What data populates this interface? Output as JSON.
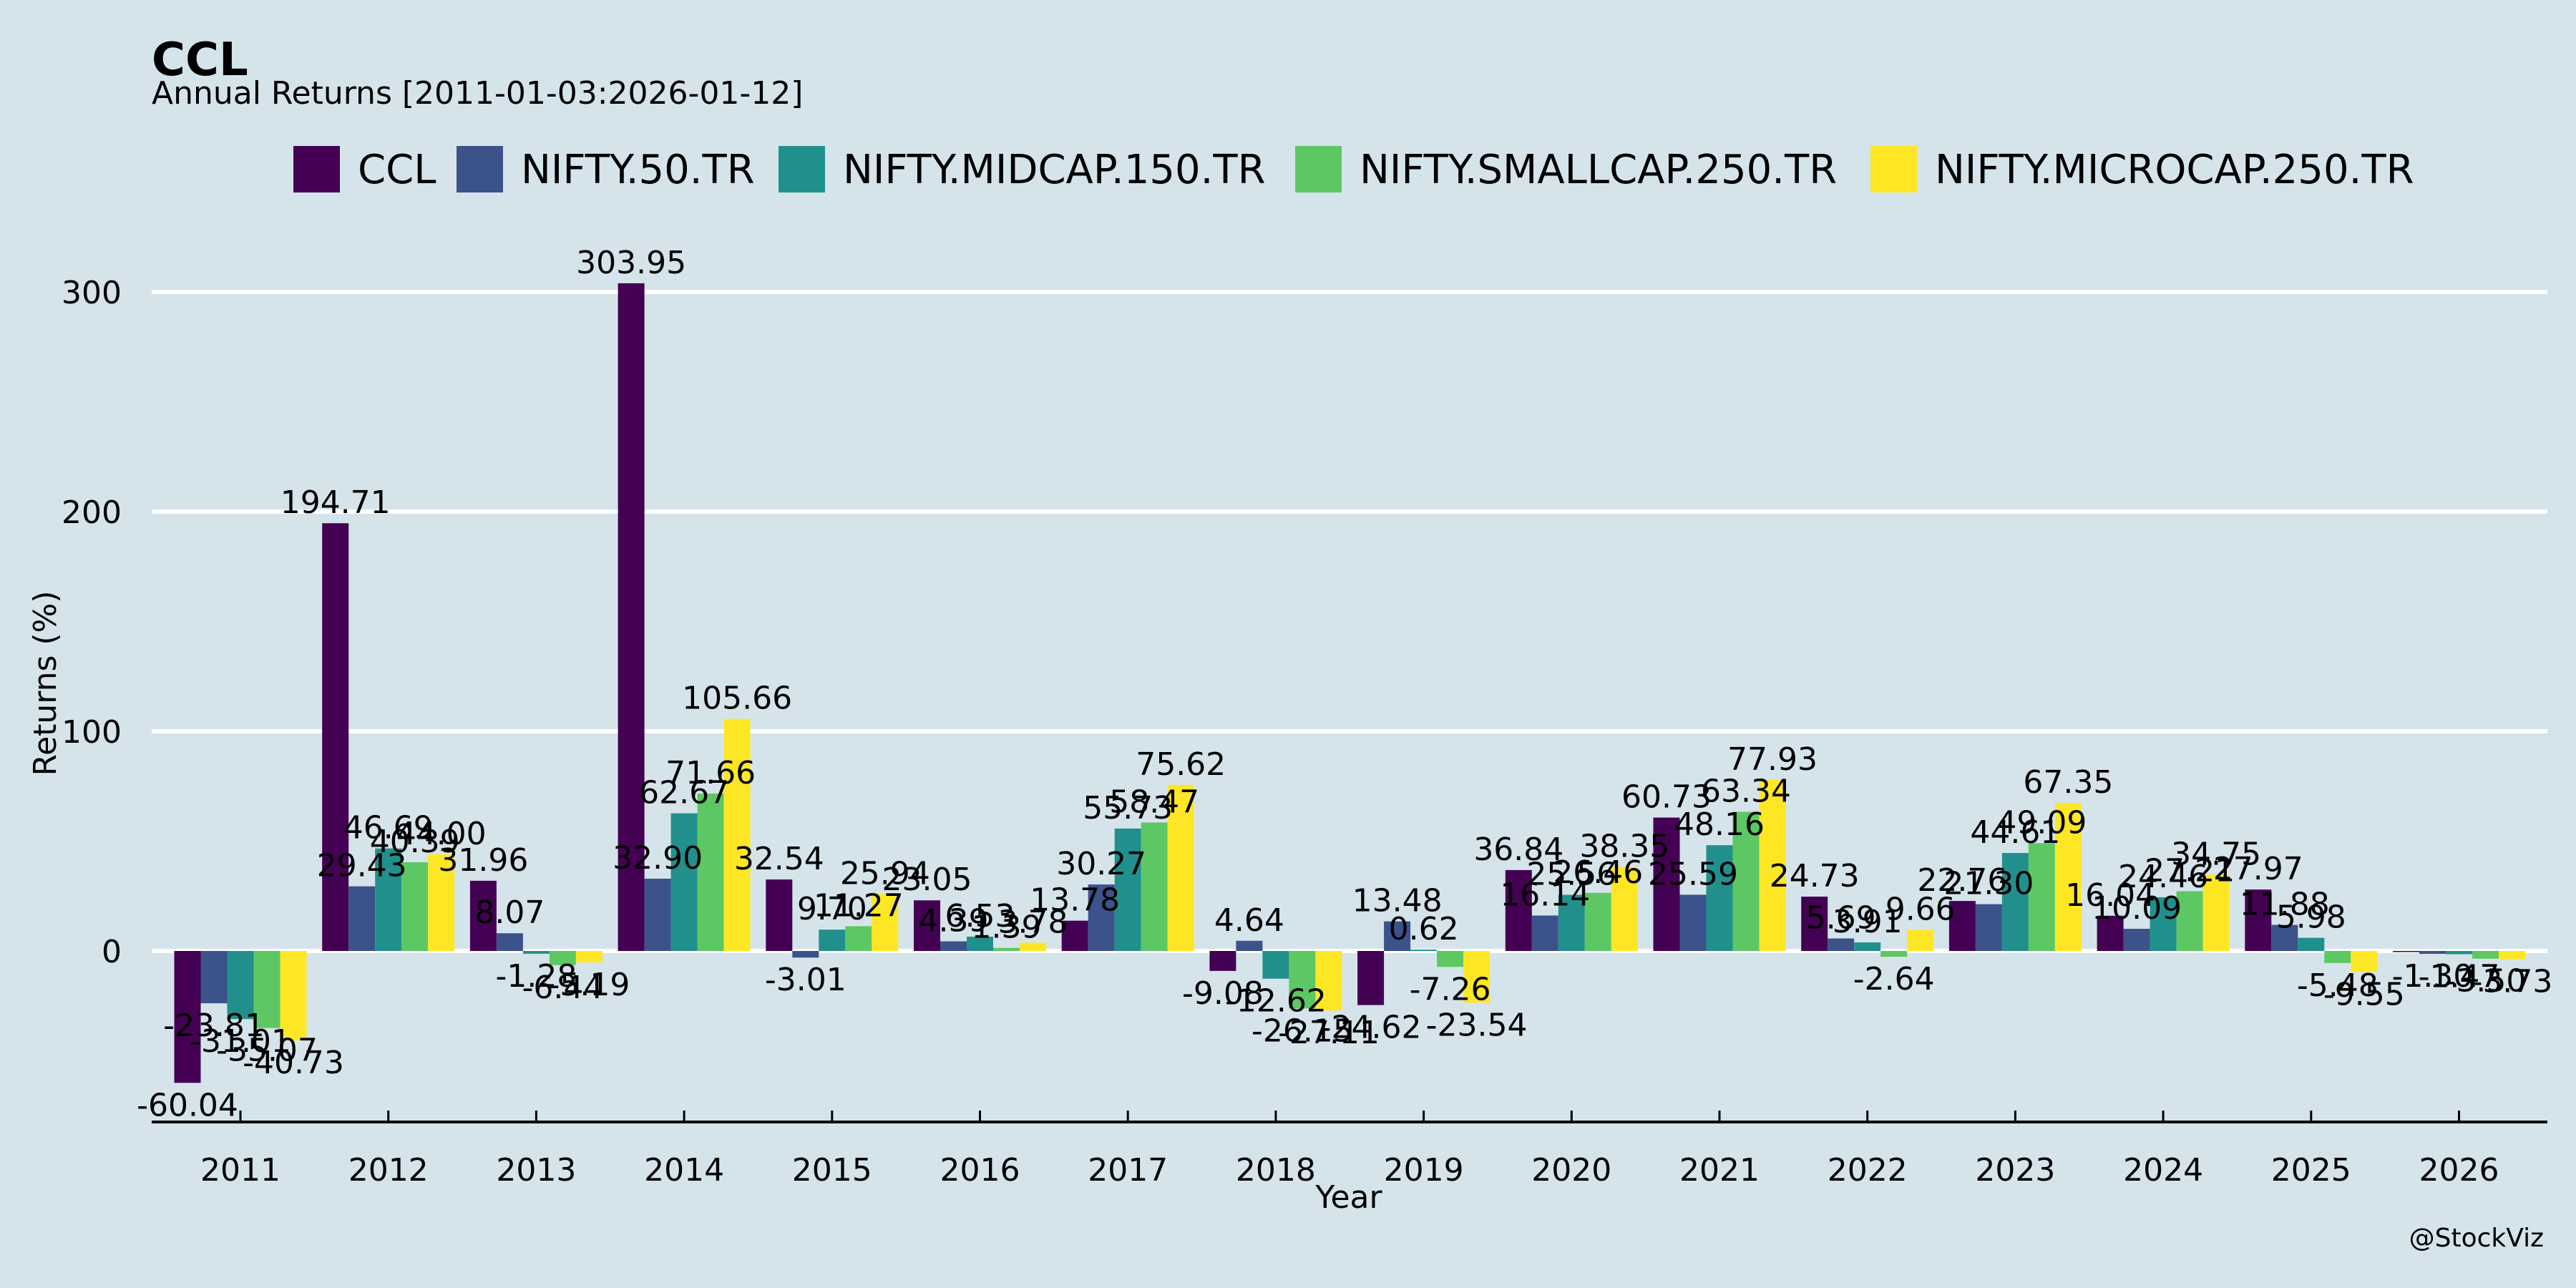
{
  "chart_data": {
    "type": "bar",
    "title": "CCL",
    "subtitle": "Annual Returns [2011-01-03:2026-01-12]",
    "xlabel": "Year",
    "ylabel": "Returns (%)",
    "ylim": [
      -78,
      330
    ],
    "yticks": [
      0,
      100,
      200,
      300
    ],
    "grid": true,
    "legend_position": "top-center",
    "watermark": "@StockViz",
    "categories": [
      "2011",
      "2012",
      "2013",
      "2014",
      "2015",
      "2016",
      "2017",
      "2018",
      "2019",
      "2020",
      "2021",
      "2022",
      "2023",
      "2024",
      "2025",
      "2026"
    ],
    "series": [
      {
        "name": "CCL",
        "color": "#440154",
        "values": [
          -60.04,
          194.71,
          31.96,
          303.95,
          32.54,
          23.05,
          13.78,
          -9.08,
          -24.62,
          36.84,
          60.73,
          24.73,
          22.76,
          16.04,
          27.97,
          -0.2
        ],
        "labels": [
          "-60.04",
          "194.71",
          "31.96",
          "303.95",
          "32.54",
          "23.05",
          "13.78",
          "-9.08",
          "-24.62",
          "36.84",
          "60.73",
          "24.73",
          "22.76",
          "16.04",
          "27.97",
          ""
        ]
      },
      {
        "name": "NIFTY.50.TR",
        "color": "#3b528b",
        "values": [
          -23.81,
          29.43,
          8.07,
          32.9,
          -3.01,
          4.39,
          30.27,
          4.64,
          13.48,
          16.14,
          25.59,
          5.69,
          21.3,
          10.09,
          11.88,
          -1.3
        ],
        "labels": [
          "-23.81",
          "29.43",
          "8.07",
          "32.90",
          "-3.01",
          "4.39",
          "30.27",
          "4.64",
          "13.48",
          "16.14",
          "25.59",
          "5.69",
          "21.30",
          "10.09",
          "11.88",
          "-1.30"
        ]
      },
      {
        "name": "NIFTY.MIDCAP.150.TR",
        "color": "#21908d",
        "values": [
          -31.01,
          46.69,
          -1.28,
          62.67,
          9.7,
          6.53,
          55.73,
          -12.62,
          0.62,
          25.56,
          48.16,
          3.91,
          44.61,
          24.46,
          5.98,
          -1.47
        ],
        "labels": [
          "-31.01",
          "46.69",
          "-1.28",
          "62.67",
          "9.70",
          "6.53",
          "55.73",
          "-12.62",
          "0.62",
          "25.56",
          "48.16",
          "3.91",
          "44.61",
          "24.46",
          "5.98",
          "-1.47"
        ]
      },
      {
        "name": "NIFTY.SMALLCAP.250.TR",
        "color": "#5dc863",
        "values": [
          -35.07,
          40.39,
          -6.44,
          71.66,
          11.27,
          1.39,
          58.47,
          -26.15,
          -7.26,
          26.46,
          63.34,
          -2.64,
          49.09,
          27.21,
          -5.48,
          -3.5
        ],
        "labels": [
          "-35.07",
          "40.39",
          "-6.44",
          "71.66",
          "11.27",
          "1.39",
          "58.47",
          "-26.15",
          "-7.26",
          "26.46",
          "63.34",
          "-2.64",
          "49.09",
          "27.21",
          "-5.48",
          "-3.50"
        ]
      },
      {
        "name": "NIFTY.MICROCAP.250.TR",
        "color": "#fde725",
        "values": [
          -40.73,
          44.0,
          -5.19,
          105.66,
          25.94,
          3.78,
          75.62,
          -27.11,
          -23.54,
          38.35,
          77.93,
          9.66,
          67.35,
          34.75,
          -9.55,
          -3.73
        ],
        "labels": [
          "-40.73",
          "44.00",
          "-5.19",
          "105.66",
          "25.94",
          "3.78",
          "75.62",
          "-27.11",
          "-23.54",
          "38.35",
          "77.93",
          "9.66",
          "67.35",
          "34.75",
          "-9.55",
          "-3.73"
        ]
      }
    ]
  }
}
